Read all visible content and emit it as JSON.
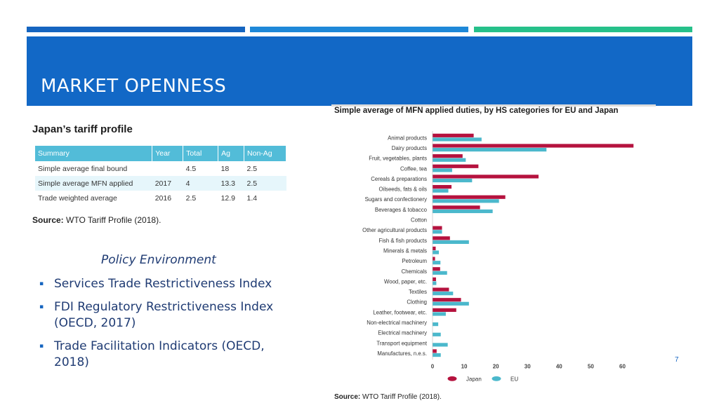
{
  "slide": {
    "title": "MARKET OPENNESS",
    "page_number": "7"
  },
  "tariff_profile": {
    "title": "Japan’s tariff profile",
    "columns": [
      "Summary",
      "Year",
      "Total",
      "Ag",
      "Non-Ag"
    ],
    "rows": [
      [
        "Simple average final bound",
        "",
        "4.5",
        "18",
        "2.5"
      ],
      [
        "Simple average MFN applied",
        "2017",
        "4",
        "13.3",
        "2.5"
      ],
      [
        "Trade weighted average",
        "2016",
        "2.5",
        "12.9",
        "1.4"
      ]
    ],
    "source_label": "Source:",
    "source_text": " WTO Tariff Profile (2018)."
  },
  "policy": {
    "title": "Policy Environment",
    "bullet_glyph": "▪",
    "items": [
      "Services Trade Restrictiveness Index",
      "FDI Regulatory Restrictiveness Index (OECD, 2017)",
      "Trade Facilitation Indicators (OECD, 2018)"
    ]
  },
  "chart_data": {
    "type": "bar",
    "orientation": "horizontal",
    "title": "Simple average of MFN applied duties, by HS categories for EU and Japan",
    "categories": [
      "Animal products",
      "Dairy products",
      "Fruit, vegetables, plants",
      "Coffee, tea",
      "Cereals & preparations",
      "Oilseeds, fats & oils",
      "Sugars and confectionery",
      "Beverages & tobacco",
      "Cotton",
      "Other agricultural products",
      "Fish & fish products",
      "Minerals & metals",
      "Petroleum",
      "Chemicals",
      "Wood, paper, etc.",
      "Textiles",
      "Clothing",
      "Leather, footwear, etc.",
      "Non-electrical machinery",
      "Electrical machinery",
      "Transport equipment",
      "Manufactures, n.e.s."
    ],
    "series": [
      {
        "name": "Japan",
        "color": "#b5123e",
        "values": [
          13,
          63.5,
          9.5,
          14.5,
          33.5,
          6,
          23,
          15,
          0,
          3,
          5.5,
          1,
          0.8,
          2.4,
          1.1,
          5.2,
          9,
          7.5,
          0,
          0,
          0,
          1.3
        ]
      },
      {
        "name": "EU",
        "color": "#4bb8cc",
        "values": [
          15.5,
          36,
          10.5,
          6.2,
          12.5,
          5,
          21,
          19,
          0,
          3,
          11.5,
          2,
          2.5,
          4.6,
          1.2,
          6.5,
          11.5,
          4.2,
          1.8,
          2.6,
          4.8,
          2.6
        ]
      }
    ],
    "x_ticks": [
      0,
      10,
      20,
      30,
      40,
      50,
      60
    ],
    "xlim": [
      0,
      65
    ],
    "legend_position": "bottom",
    "grid": false,
    "source_label": "Source:",
    "source_text": " WTO Tariff Profile (2018)."
  }
}
